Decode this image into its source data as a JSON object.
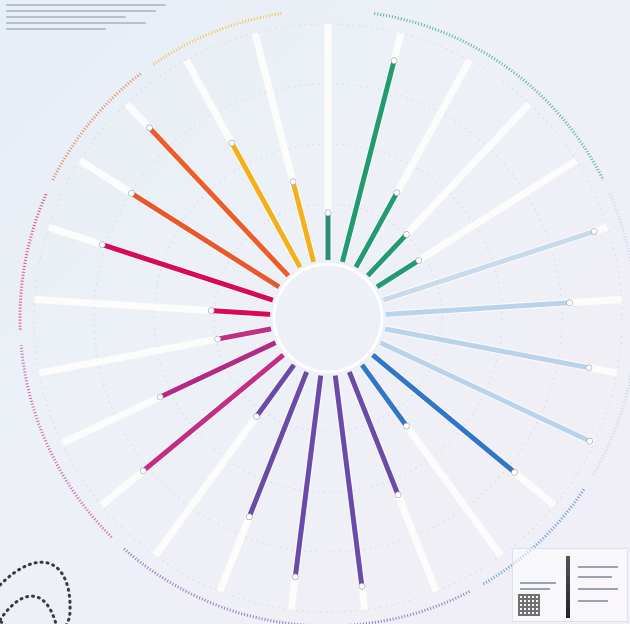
{
  "chart_data": {
    "type": "bar",
    "layout": "radial",
    "title": "",
    "ylim": [
      0,
      100
    ],
    "grid": true,
    "legend": "bottom-right",
    "series": [
      {
        "value": 20,
        "color": "#2b8c6f"
      },
      {
        "value": 88,
        "color": "#239b72"
      },
      {
        "value": 36,
        "color": "#239b72"
      },
      {
        "value": 24,
        "color": "#239b72"
      },
      {
        "value": 21,
        "color": "#239b72"
      },
      {
        "value": 94,
        "color": "#c7dbec"
      },
      {
        "value": 78,
        "color": "#bad3ea"
      },
      {
        "value": 88,
        "color": "#bad3ea"
      },
      {
        "value": 98,
        "color": "#bad3ea"
      },
      {
        "value": 78,
        "color": "#3276c8"
      },
      {
        "value": 32,
        "color": "#3276c8"
      },
      {
        "value": 56,
        "color": "#6a4ba8"
      },
      {
        "value": 90,
        "color": "#6a4ba8"
      },
      {
        "value": 86,
        "color": "#6a4ba8"
      },
      {
        "value": 66,
        "color": "#6a4ba8"
      },
      {
        "value": 27,
        "color": "#6a4ba8"
      },
      {
        "value": 77,
        "color": "#c22d86"
      },
      {
        "value": 54,
        "color": "#b12a88"
      },
      {
        "value": 23,
        "color": "#c22d86"
      },
      {
        "value": 25,
        "color": "#d60a55"
      },
      {
        "value": 76,
        "color": "#d60a55"
      },
      {
        "value": 74,
        "color": "#e8582a"
      },
      {
        "value": 86,
        "color": "#ec5d2a"
      },
      {
        "value": 60,
        "color": "#f4b01c"
      },
      {
        "value": 35,
        "color": "#f4b01c"
      }
    ],
    "group_arcs": [
      {
        "color": "#239b72"
      },
      {
        "color": "#bad3ea"
      },
      {
        "color": "#3276c8"
      },
      {
        "color": "#6a4ba8"
      },
      {
        "color": "#c22d86"
      },
      {
        "color": "#d60a55"
      },
      {
        "color": "#ec5d2a"
      },
      {
        "color": "#f4b01c"
      }
    ]
  }
}
